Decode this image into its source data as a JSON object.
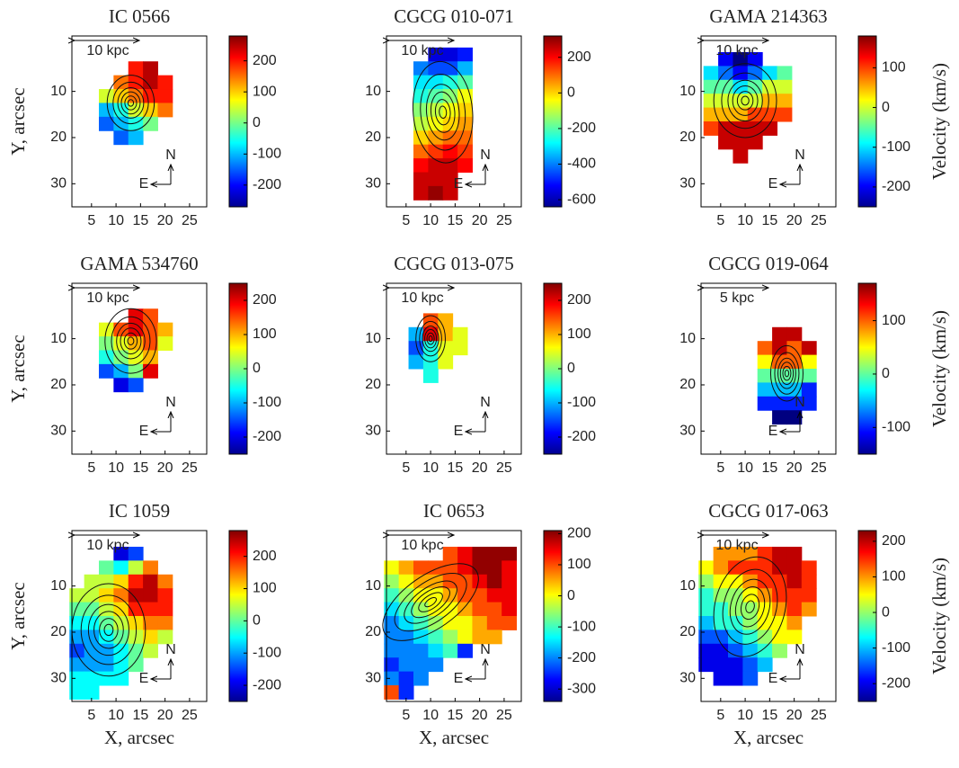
{
  "chart_data": [
    {
      "type": "heatmap",
      "title": "IC 0566",
      "ylabel": "Y, arcsec",
      "xlim": [
        1,
        28.5
      ],
      "ylim": [
        -2,
        35
      ],
      "y_axis_reversed": true,
      "xticks": [
        5,
        10,
        15,
        20,
        25
      ],
      "yticks": [
        10,
        20,
        30
      ],
      "clim": [
        -270,
        280
      ],
      "cticks": [
        200,
        100,
        0,
        -100,
        -200
      ],
      "colormap": "jet",
      "scale_bar": "10 kpc",
      "compass_labels": [
        "N",
        "E"
      ],
      "x": [
        8,
        11,
        14,
        17,
        20
      ],
      "y": [
        5,
        8,
        11,
        14,
        17,
        20
      ],
      "values": [
        [
          null,
          null,
          200,
          250,
          null
        ],
        [
          null,
          150,
          200,
          250,
          200
        ],
        [
          50,
          100,
          150,
          200,
          200
        ],
        [
          -100,
          -50,
          50,
          100,
          150
        ],
        [
          -150,
          -100,
          -50,
          0,
          null
        ],
        [
          null,
          -150,
          -100,
          null,
          null
        ]
      ]
    },
    {
      "type": "heatmap",
      "title": "CGCG 010-071",
      "xlim": [
        1,
        28.5
      ],
      "ylim": [
        -2,
        35
      ],
      "y_axis_reversed": true,
      "xticks": [
        5,
        10,
        15,
        20,
        25
      ],
      "yticks": [
        10,
        20,
        30
      ],
      "clim": [
        -640,
        320
      ],
      "cticks": [
        200,
        0,
        -200,
        -400,
        -600
      ],
      "colormap": "jet",
      "scale_bar": "10 kpc",
      "compass_labels": [
        "N",
        "E"
      ],
      "x": [
        8,
        11,
        14,
        17
      ],
      "y": [
        2,
        5,
        8,
        11,
        14,
        17,
        20,
        23,
        26,
        29,
        32
      ],
      "values": [
        [
          null,
          -550,
          -550,
          -500
        ],
        [
          -400,
          -450,
          -450,
          -350
        ],
        [
          -300,
          -300,
          -250,
          -200
        ],
        [
          -250,
          -200,
          -150,
          -50
        ],
        [
          -150,
          -100,
          -50,
          0
        ],
        [
          -100,
          -50,
          0,
          50
        ],
        [
          0,
          50,
          100,
          100
        ],
        [
          100,
          150,
          200,
          150
        ],
        [
          200,
          250,
          250,
          200
        ],
        [
          250,
          250,
          250,
          null
        ],
        [
          250,
          300,
          250,
          null
        ]
      ]
    },
    {
      "type": "heatmap",
      "title": "GAMA 214363",
      "colorbar_label": "Velocity (km/s)",
      "xlim": [
        1,
        28.5
      ],
      "ylim": [
        -2,
        35
      ],
      "y_axis_reversed": true,
      "xticks": [
        5,
        10,
        15,
        20,
        25
      ],
      "yticks": [
        10,
        20,
        30
      ],
      "clim": [
        -250,
        180
      ],
      "cticks": [
        100,
        0,
        -100,
        -200
      ],
      "colormap": "jet",
      "scale_bar": "10 kpc",
      "compass_labels": [
        "N",
        "E"
      ],
      "x": [
        3,
        6,
        9,
        12,
        15,
        18
      ],
      "y": [
        3,
        6,
        9,
        12,
        15,
        18,
        21,
        24
      ],
      "values": [
        [
          null,
          -200,
          -250,
          -200,
          null,
          null
        ],
        [
          -100,
          -150,
          -200,
          -150,
          -100,
          -50
        ],
        [
          -50,
          -50,
          -100,
          -50,
          0,
          0
        ],
        [
          0,
          0,
          0,
          0,
          50,
          50
        ],
        [
          50,
          50,
          50,
          100,
          100,
          100
        ],
        [
          100,
          150,
          150,
          150,
          150,
          null
        ],
        [
          null,
          150,
          150,
          150,
          null,
          null
        ],
        [
          null,
          null,
          150,
          null,
          null,
          null
        ]
      ]
    },
    {
      "type": "heatmap",
      "title": "GAMA 534760",
      "ylabel": "Y, arcsec",
      "xlim": [
        1,
        28.5
      ],
      "ylim": [
        -2,
        35
      ],
      "y_axis_reversed": true,
      "xticks": [
        5,
        10,
        15,
        20,
        25
      ],
      "yticks": [
        10,
        20,
        30
      ],
      "clim": [
        -250,
        250
      ],
      "cticks": [
        200,
        100,
        0,
        -100,
        -200
      ],
      "colormap": "jet",
      "scale_bar": "10 kpc",
      "compass_labels": [
        "N",
        "E"
      ],
      "x": [
        8,
        11,
        14,
        17,
        20
      ],
      "y": [
        5,
        8,
        11,
        14,
        17,
        20
      ],
      "values": [
        [
          null,
          null,
          200,
          150,
          null
        ],
        [
          50,
          150,
          200,
          150,
          100
        ],
        [
          0,
          50,
          100,
          150,
          50
        ],
        [
          -50,
          0,
          50,
          100,
          null
        ],
        [
          -150,
          -100,
          0,
          200,
          null
        ],
        [
          null,
          -200,
          -150,
          null,
          null
        ]
      ]
    },
    {
      "type": "heatmap",
      "title": "CGCG 013-075",
      "xlim": [
        1,
        28.5
      ],
      "ylim": [
        -2,
        35
      ],
      "y_axis_reversed": true,
      "xticks": [
        5,
        10,
        15,
        20,
        25
      ],
      "yticks": [
        10,
        20,
        30
      ],
      "clim": [
        -250,
        250
      ],
      "cticks": [
        200,
        100,
        0,
        -100,
        -200
      ],
      "colormap": "jet",
      "scale_bar": "10 kpc",
      "compass_labels": [
        "N",
        "E"
      ],
      "x": [
        7,
        10,
        13,
        16
      ],
      "y": [
        6,
        9,
        12,
        15,
        18
      ],
      "values": [
        [
          null,
          150,
          100,
          null
        ],
        [
          -100,
          200,
          100,
          50
        ],
        [
          -150,
          -50,
          50,
          50
        ],
        [
          -100,
          -50,
          50,
          null
        ],
        [
          null,
          -50,
          null,
          null
        ]
      ]
    },
    {
      "type": "heatmap",
      "title": "CGCG 019-064",
      "colorbar_label": "Velocity (km/s)",
      "xlim": [
        1,
        28.5
      ],
      "ylim": [
        -2,
        35
      ],
      "y_axis_reversed": true,
      "xticks": [
        5,
        10,
        15,
        20,
        25
      ],
      "yticks": [
        10,
        20,
        30
      ],
      "clim": [
        -150,
        170
      ],
      "cticks": [
        100,
        0,
        -100
      ],
      "colormap": "jet",
      "scale_bar": "5 kpc",
      "compass_labels": [
        "N",
        "E"
      ],
      "x": [
        14,
        17,
        20,
        23
      ],
      "y": [
        9,
        12,
        15,
        18,
        21,
        24,
        27
      ],
      "values": [
        [
          null,
          150,
          150,
          null
        ],
        [
          100,
          150,
          100,
          150
        ],
        [
          50,
          100,
          100,
          50
        ],
        [
          0,
          0,
          0,
          0
        ],
        [
          -50,
          -50,
          -50,
          -100
        ],
        [
          -100,
          -100,
          -100,
          -100
        ],
        [
          null,
          -150,
          -150,
          null
        ]
      ]
    },
    {
      "type": "heatmap",
      "title": "IC 1059",
      "ylabel": "Y, arcsec",
      "xlabel": "X, arcsec",
      "xlim": [
        1,
        28.5
      ],
      "ylim": [
        -2,
        35
      ],
      "y_axis_reversed": true,
      "xticks": [
        5,
        10,
        15,
        20,
        25
      ],
      "yticks": [
        10,
        20,
        30
      ],
      "clim": [
        -250,
        280
      ],
      "cticks": [
        200,
        100,
        0,
        -100,
        -200
      ],
      "colormap": "jet",
      "scale_bar": "10 kpc",
      "compass_labels": [
        "N",
        "E"
      ],
      "x": [
        2,
        5,
        8,
        11,
        14,
        17,
        20
      ],
      "y": [
        3,
        6,
        9,
        12,
        15,
        18,
        21,
        24,
        27,
        30,
        33
      ],
      "values": [
        [
          null,
          null,
          null,
          -200,
          -150,
          null,
          null
        ],
        [
          null,
          null,
          0,
          -50,
          50,
          150,
          null
        ],
        [
          null,
          50,
          50,
          100,
          200,
          250,
          150
        ],
        [
          50,
          50,
          100,
          150,
          250,
          250,
          200
        ],
        [
          0,
          0,
          50,
          100,
          200,
          200,
          200
        ],
        [
          -50,
          -50,
          0,
          50,
          100,
          150,
          150
        ],
        [
          -100,
          -100,
          -50,
          0,
          50,
          100,
          50
        ],
        [
          -150,
          -100,
          -100,
          -50,
          0,
          50,
          null
        ],
        [
          -100,
          -100,
          -100,
          -50,
          0,
          null,
          null
        ],
        [
          -50,
          -50,
          -50,
          -50,
          null,
          null,
          null
        ],
        [
          -50,
          -50,
          null,
          null,
          null,
          null,
          null
        ]
      ]
    },
    {
      "type": "heatmap",
      "title": "IC 0653",
      "xlabel": "X, arcsec",
      "xlim": [
        1,
        28.5
      ],
      "ylim": [
        -2,
        35
      ],
      "y_axis_reversed": true,
      "xticks": [
        5,
        10,
        15,
        20,
        25
      ],
      "yticks": [
        10,
        20,
        30
      ],
      "clim": [
        -340,
        210
      ],
      "cticks": [
        200,
        100,
        0,
        -100,
        -200,
        -300
      ],
      "colormap": "jet",
      "scale_bar": "10 kpc",
      "compass_labels": [
        "N",
        "E"
      ],
      "x": [
        2,
        5,
        8,
        11,
        14,
        17,
        20,
        23,
        26
      ],
      "y": [
        3,
        6,
        9,
        12,
        15,
        18,
        21,
        24,
        27,
        30,
        33
      ],
      "values": [
        [
          null,
          null,
          null,
          null,
          100,
          150,
          200,
          200,
          200
        ],
        [
          0,
          50,
          100,
          100,
          100,
          150,
          200,
          200,
          150
        ],
        [
          -50,
          0,
          50,
          50,
          100,
          100,
          150,
          200,
          150
        ],
        [
          -100,
          -50,
          0,
          0,
          50,
          100,
          100,
          150,
          150
        ],
        [
          -150,
          -100,
          -50,
          0,
          0,
          50,
          100,
          100,
          150
        ],
        [
          -200,
          -150,
          -100,
          -50,
          0,
          0,
          50,
          100,
          100
        ],
        [
          -200,
          -200,
          -150,
          -100,
          -50,
          0,
          50,
          50,
          null
        ],
        [
          -200,
          -200,
          -200,
          -150,
          -100,
          -250,
          null,
          null,
          null
        ],
        [
          -250,
          -200,
          -200,
          -200,
          null,
          null,
          null,
          null,
          null
        ],
        [
          -200,
          -250,
          -200,
          null,
          null,
          null,
          null,
          null,
          null
        ],
        [
          100,
          -250,
          null,
          null,
          null,
          null,
          null,
          null,
          null
        ]
      ]
    },
    {
      "type": "heatmap",
      "title": "CGCG 017-063",
      "xlabel": "X, arcsec",
      "colorbar_label": "Velocity (km/s)",
      "xlim": [
        1,
        28.5
      ],
      "ylim": [
        -2,
        35
      ],
      "y_axis_reversed": true,
      "xticks": [
        5,
        10,
        15,
        20,
        25
      ],
      "yticks": [
        10,
        20,
        30
      ],
      "clim": [
        -250,
        230
      ],
      "cticks": [
        200,
        100,
        0,
        -100,
        -200
      ],
      "colormap": "jet",
      "scale_bar": "10 kpc",
      "compass_labels": [
        "N",
        "E"
      ],
      "x": [
        2,
        5,
        8,
        11,
        14,
        17,
        20,
        23
      ],
      "y": [
        3,
        6,
        9,
        12,
        15,
        18,
        21,
        24,
        27,
        30
      ],
      "values": [
        [
          null,
          100,
          100,
          100,
          150,
          200,
          200,
          null
        ],
        [
          50,
          100,
          150,
          150,
          150,
          200,
          200,
          150
        ],
        [
          0,
          50,
          50,
          100,
          150,
          150,
          200,
          150
        ],
        [
          -50,
          0,
          0,
          50,
          100,
          150,
          150,
          150
        ],
        [
          -50,
          -50,
          0,
          0,
          50,
          100,
          150,
          100
        ],
        [
          -100,
          -50,
          -50,
          0,
          50,
          50,
          100,
          null
        ],
        [
          -150,
          -150,
          -100,
          -50,
          0,
          50,
          50,
          null
        ],
        [
          -200,
          -200,
          -150,
          -100,
          -50,
          0,
          null,
          null
        ],
        [
          -200,
          -200,
          -200,
          -150,
          -100,
          null,
          null,
          null
        ],
        [
          null,
          -200,
          -200,
          -150,
          null,
          null,
          null,
          null
        ]
      ]
    }
  ]
}
